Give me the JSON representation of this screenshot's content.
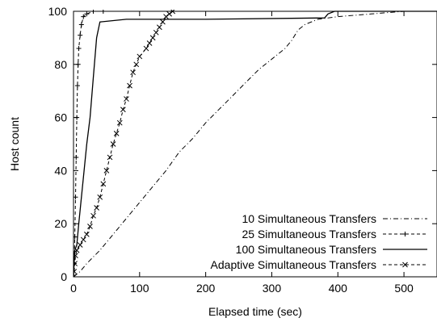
{
  "chart_data": {
    "type": "line",
    "xlabel": "Elapsed time (sec)",
    "ylabel": "Host count",
    "xlim": [
      0,
      550
    ],
    "ylim": [
      0,
      100
    ],
    "x_ticks": [
      0,
      100,
      200,
      300,
      400,
      500
    ],
    "y_ticks": [
      0,
      20,
      40,
      60,
      80,
      100
    ],
    "grid": false,
    "legend_position": "bottom-right",
    "series": [
      {
        "name": "10 Simultaneous Transfers",
        "style": "dash-dot",
        "color": "#000000",
        "points": [
          [
            0,
            0
          ],
          [
            10,
            2
          ],
          [
            20,
            5
          ],
          [
            40,
            10
          ],
          [
            60,
            16
          ],
          [
            80,
            22
          ],
          [
            100,
            28
          ],
          [
            120,
            34
          ],
          [
            140,
            40
          ],
          [
            160,
            47
          ],
          [
            180,
            52
          ],
          [
            200,
            58
          ],
          [
            220,
            63
          ],
          [
            240,
            68
          ],
          [
            260,
            73
          ],
          [
            280,
            78
          ],
          [
            300,
            82
          ],
          [
            320,
            86
          ],
          [
            330,
            89
          ],
          [
            340,
            93
          ],
          [
            350,
            95
          ],
          [
            370,
            97
          ],
          [
            400,
            98
          ],
          [
            450,
            99
          ],
          [
            500,
            100
          ]
        ]
      },
      {
        "name": "25 Simultaneous Transfers",
        "style": "dashed-plus",
        "color": "#000000",
        "points": [
          [
            0,
            0
          ],
          [
            1,
            5
          ],
          [
            2,
            15
          ],
          [
            3,
            30
          ],
          [
            4,
            45
          ],
          [
            5,
            60
          ],
          [
            6,
            72
          ],
          [
            7,
            80
          ],
          [
            8,
            86
          ],
          [
            10,
            91
          ],
          [
            12,
            95
          ],
          [
            15,
            98
          ],
          [
            20,
            99
          ],
          [
            30,
            100
          ],
          [
            45,
            100
          ]
        ]
      },
      {
        "name": "100 Simultaneous Transfers",
        "style": "solid",
        "color": "#000000",
        "points": [
          [
            0,
            0
          ],
          [
            2,
            10
          ],
          [
            5,
            12
          ],
          [
            8,
            20
          ],
          [
            12,
            30
          ],
          [
            16,
            40
          ],
          [
            20,
            50
          ],
          [
            25,
            60
          ],
          [
            30,
            75
          ],
          [
            35,
            90
          ],
          [
            40,
            96
          ],
          [
            80,
            97
          ],
          [
            200,
            97
          ],
          [
            380,
            97.5
          ],
          [
            385,
            99
          ],
          [
            395,
            100
          ],
          [
            550,
            100
          ]
        ]
      },
      {
        "name": "Adaptive Simultaneous Transfers",
        "style": "dashed-x",
        "color": "#000000",
        "points": [
          [
            0,
            0
          ],
          [
            1,
            2
          ],
          [
            2,
            5
          ],
          [
            3,
            8
          ],
          [
            5,
            10
          ],
          [
            10,
            12
          ],
          [
            15,
            14
          ],
          [
            20,
            16
          ],
          [
            25,
            19
          ],
          [
            30,
            23
          ],
          [
            35,
            26
          ],
          [
            40,
            30
          ],
          [
            45,
            35
          ],
          [
            50,
            40
          ],
          [
            55,
            45
          ],
          [
            60,
            50
          ],
          [
            65,
            54
          ],
          [
            70,
            58
          ],
          [
            75,
            63
          ],
          [
            80,
            67
          ],
          [
            85,
            72
          ],
          [
            90,
            77
          ],
          [
            95,
            80
          ],
          [
            100,
            83
          ],
          [
            110,
            86
          ],
          [
            115,
            88
          ],
          [
            120,
            90
          ],
          [
            125,
            92
          ],
          [
            130,
            94
          ],
          [
            135,
            96
          ],
          [
            140,
            98
          ],
          [
            145,
            99
          ],
          [
            150,
            100
          ]
        ]
      }
    ]
  }
}
